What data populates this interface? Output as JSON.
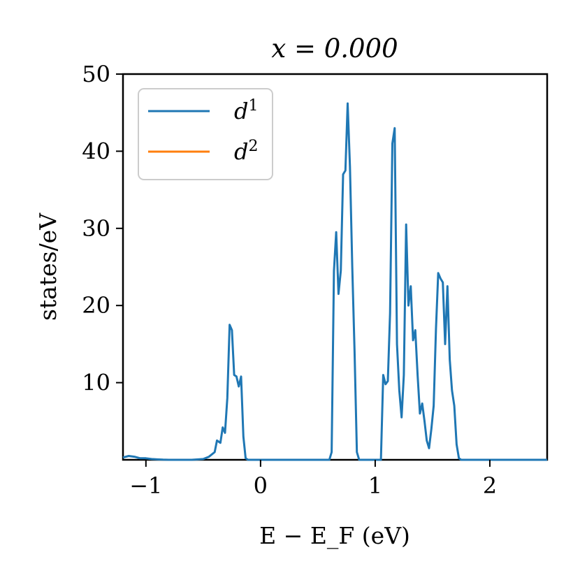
{
  "chart_data": {
    "type": "line",
    "title": "x = 0.000",
    "xlabel": "E − E_F (eV)",
    "ylabel": "states/eV",
    "xlim": [
      -1.2,
      2.5
    ],
    "ylim": [
      0,
      50
    ],
    "xticks": [
      -1,
      0,
      1,
      2
    ],
    "xtick_labels": [
      "−1",
      "0",
      "1",
      "2"
    ],
    "yticks": [
      10,
      20,
      30,
      40,
      50
    ],
    "ytick_labels": [
      "10",
      "20",
      "30",
      "40",
      "50"
    ],
    "grid": false,
    "legend": {
      "placement": "top-left",
      "entries": [
        {
          "base": "d",
          "sup": "1",
          "color": "#1f77b4"
        },
        {
          "base": "d",
          "sup": "2",
          "color": "#ff7f0e"
        }
      ]
    },
    "series": [
      {
        "color": "#1f77b4",
        "x": [
          -1.2,
          -1.15,
          -1.1,
          -1.05,
          -1.0,
          -0.95,
          -0.9,
          -0.85,
          -0.8,
          -0.7,
          -0.6,
          -0.5,
          -0.45,
          -0.4,
          -0.38,
          -0.35,
          -0.33,
          -0.31,
          -0.29,
          -0.27,
          -0.25,
          -0.23,
          -0.21,
          -0.19,
          -0.17,
          -0.15,
          -0.13,
          -0.11,
          -0.09,
          -0.07,
          -0.05,
          -0.03,
          -0.01,
          0.0,
          0.2,
          0.4,
          0.6,
          0.62,
          0.64,
          0.66,
          0.68,
          0.7,
          0.72,
          0.74,
          0.76,
          0.78,
          0.8,
          0.82,
          0.84,
          0.86,
          0.88,
          0.9,
          0.95,
          1.0,
          1.05,
          1.07,
          1.09,
          1.11,
          1.13,
          1.15,
          1.17,
          1.19,
          1.21,
          1.23,
          1.25,
          1.27,
          1.29,
          1.31,
          1.33,
          1.35,
          1.37,
          1.39,
          1.41,
          1.43,
          1.45,
          1.47,
          1.49,
          1.51,
          1.53,
          1.55,
          1.57,
          1.59,
          1.61,
          1.63,
          1.65,
          1.67,
          1.69,
          1.71,
          1.73,
          1.75,
          1.77,
          1.79,
          1.81,
          1.83,
          1.85,
          1.87,
          1.89,
          1.91,
          1.93,
          1.95,
          1.97,
          1.99,
          2.0,
          2.1,
          2.3,
          2.5
        ],
        "y": [
          0.3,
          0.5,
          0.4,
          0.2,
          0.2,
          0.1,
          0.05,
          0.02,
          0.0,
          0.0,
          0.0,
          0.1,
          0.4,
          1.0,
          2.5,
          2.2,
          4.2,
          3.5,
          8.0,
          17.5,
          16.8,
          11.0,
          10.8,
          9.5,
          10.8,
          3.0,
          0.2,
          0.0,
          0.0,
          0.0,
          0.0,
          0.0,
          0.0,
          0.0,
          0.0,
          0.0,
          0.0,
          1.0,
          24.5,
          29.5,
          21.5,
          24.5,
          37.0,
          37.5,
          46.2,
          38.0,
          25.0,
          14.0,
          1.0,
          0.0,
          0.0,
          0.0,
          0.0,
          0.0,
          0.0,
          11.0,
          9.8,
          10.2,
          19.0,
          41.0,
          43.0,
          15.0,
          9.0,
          5.5,
          11.0,
          30.5,
          20.0,
          22.5,
          15.5,
          16.8,
          11.0,
          6.0,
          7.3,
          5.0,
          2.5,
          1.5,
          4.0,
          7.0,
          17.0,
          24.2,
          23.5,
          23.0,
          15.0,
          22.5,
          13.0,
          9.0,
          7.0,
          2.0,
          0.2,
          0.0,
          0.0,
          0.0,
          0.0,
          0.0,
          0.0,
          0.0,
          0.0,
          0.0,
          0.0,
          0.0,
          0.0,
          0.0,
          0.0,
          0.0,
          0.0,
          0.0
        ]
      },
      {
        "color": "#ff7f0e",
        "x": [],
        "y": []
      }
    ]
  }
}
